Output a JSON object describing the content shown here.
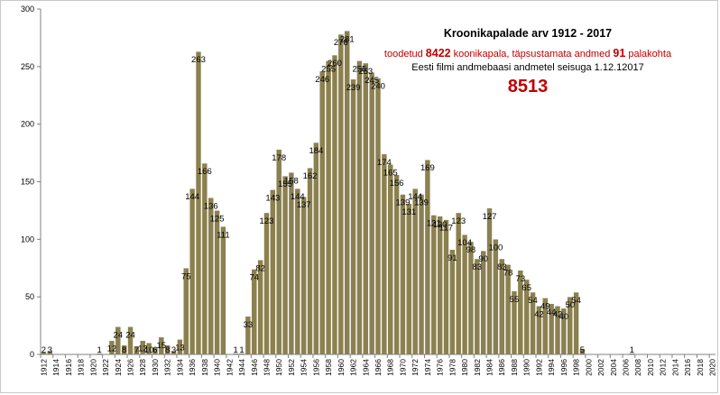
{
  "chart_data": {
    "type": "bar",
    "title": "Kroonikapalade arv 1912 - 2017",
    "subtitle": {
      "prefix": "toodetud ",
      "count_produced": "8422",
      "middle": " koonikapala, täpsustamata andmed ",
      "count_unspecified": "91",
      "suffix": " palakohta"
    },
    "source_note": "Eesti filmi andmebaasi andmetel seisuga 1.12.12017",
    "total": "8513",
    "bar_color": "#8b8050",
    "bar_edge_color": "#ffffff",
    "ylim": [
      0,
      300
    ],
    "yticks": [
      0,
      50,
      100,
      150,
      200,
      250,
      300
    ],
    "xlim": [
      1912,
      2020
    ],
    "xticks": [
      1912,
      1914,
      1916,
      1918,
      1920,
      1922,
      1924,
      1926,
      1928,
      1930,
      1932,
      1934,
      1936,
      1938,
      1940,
      1942,
      1944,
      1946,
      1948,
      1950,
      1952,
      1954,
      1956,
      1958,
      1960,
      1962,
      1964,
      1966,
      1968,
      1970,
      1972,
      1974,
      1976,
      1978,
      1980,
      1982,
      1984,
      1986,
      1988,
      1990,
      1992,
      1994,
      1996,
      1998,
      2000,
      2002,
      2004,
      2006,
      2008,
      2010,
      2012,
      2014,
      2016,
      2018,
      2020
    ],
    "points": [
      {
        "x": 1912,
        "y": 2
      },
      {
        "x": 1913,
        "y": 3
      },
      {
        "x": 1921,
        "y": 1
      },
      {
        "x": 1923,
        "y": 12
      },
      {
        "x": 1924,
        "y": 24
      },
      {
        "x": 1925,
        "y": 8
      },
      {
        "x": 1926,
        "y": 24
      },
      {
        "x": 1927,
        "y": 7
      },
      {
        "x": 1928,
        "y": 12
      },
      {
        "x": 1929,
        "y": 10
      },
      {
        "x": 1930,
        "y": 6
      },
      {
        "x": 1931,
        "y": 15
      },
      {
        "x": 1932,
        "y": 8
      },
      {
        "x": 1933,
        "y": 3
      },
      {
        "x": 1934,
        "y": 13
      },
      {
        "x": 1935,
        "y": 75
      },
      {
        "x": 1936,
        "y": 144
      },
      {
        "x": 1937,
        "y": 263
      },
      {
        "x": 1938,
        "y": 166
      },
      {
        "x": 1939,
        "y": 136
      },
      {
        "x": 1940,
        "y": 125
      },
      {
        "x": 1941,
        "y": 111
      },
      {
        "x": 1943,
        "y": 1
      },
      {
        "x": 1944,
        "y": 1
      },
      {
        "x": 1945,
        "y": 33
      },
      {
        "x": 1946,
        "y": 74
      },
      {
        "x": 1947,
        "y": 82
      },
      {
        "x": 1948,
        "y": 123
      },
      {
        "x": 1949,
        "y": 143
      },
      {
        "x": 1950,
        "y": 178
      },
      {
        "x": 1951,
        "y": 155
      },
      {
        "x": 1952,
        "y": 158
      },
      {
        "x": 1953,
        "y": 144
      },
      {
        "x": 1954,
        "y": 137
      },
      {
        "x": 1955,
        "y": 162
      },
      {
        "x": 1956,
        "y": 184
      },
      {
        "x": 1957,
        "y": 246
      },
      {
        "x": 1958,
        "y": 255
      },
      {
        "x": 1959,
        "y": 260
      },
      {
        "x": 1960,
        "y": 278
      },
      {
        "x": 1961,
        "y": 281
      },
      {
        "x": 1962,
        "y": 239
      },
      {
        "x": 1963,
        "y": 255
      },
      {
        "x": 1964,
        "y": 253
      },
      {
        "x": 1965,
        "y": 245
      },
      {
        "x": 1966,
        "y": 240
      },
      {
        "x": 1967,
        "y": 174
      },
      {
        "x": 1968,
        "y": 165
      },
      {
        "x": 1969,
        "y": 156
      },
      {
        "x": 1970,
        "y": 139
      },
      {
        "x": 1971,
        "y": 131
      },
      {
        "x": 1972,
        "y": 144
      },
      {
        "x": 1973,
        "y": 139
      },
      {
        "x": 1974,
        "y": 169
      },
      {
        "x": 1975,
        "y": 121
      },
      {
        "x": 1976,
        "y": 120
      },
      {
        "x": 1977,
        "y": 117
      },
      {
        "x": 1978,
        "y": 91
      },
      {
        "x": 1979,
        "y": 123
      },
      {
        "x": 1980,
        "y": 104
      },
      {
        "x": 1981,
        "y": 98
      },
      {
        "x": 1982,
        "y": 83
      },
      {
        "x": 1983,
        "y": 90
      },
      {
        "x": 1984,
        "y": 127
      },
      {
        "x": 1985,
        "y": 100
      },
      {
        "x": 1986,
        "y": 83
      },
      {
        "x": 1987,
        "y": 78
      },
      {
        "x": 1988,
        "y": 55
      },
      {
        "x": 1989,
        "y": 73
      },
      {
        "x": 1990,
        "y": 65
      },
      {
        "x": 1991,
        "y": 54
      },
      {
        "x": 1992,
        "y": 42
      },
      {
        "x": 1993,
        "y": 49
      },
      {
        "x": 1994,
        "y": 44
      },
      {
        "x": 1995,
        "y": 42
      },
      {
        "x": 1996,
        "y": 40
      },
      {
        "x": 1997,
        "y": 50
      },
      {
        "x": 1998,
        "y": 54
      },
      {
        "x": 1999,
        "y": 5
      },
      {
        "x": 2007,
        "y": 1
      }
    ]
  }
}
